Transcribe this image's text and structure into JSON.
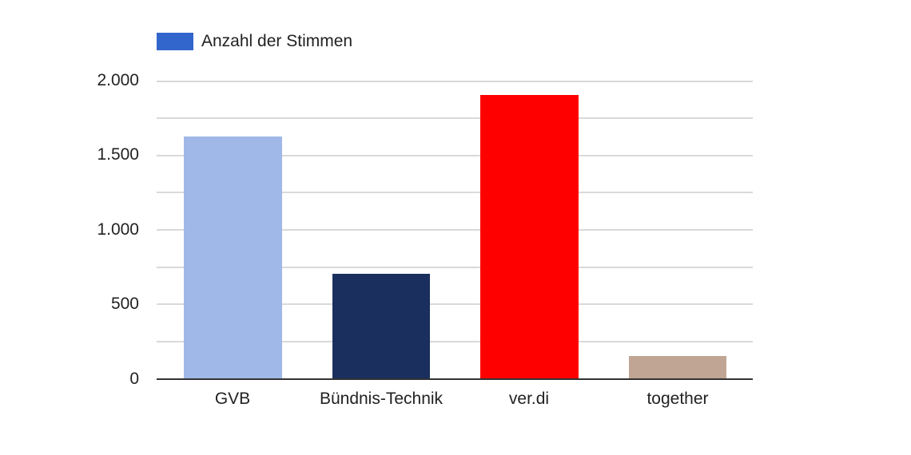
{
  "chart_data": {
    "type": "bar",
    "title": "",
    "xlabel": "",
    "ylabel": "",
    "legend": [
      "Anzahl der Stimmen"
    ],
    "legend_position": "top-left",
    "legend_color": "#3366cc",
    "categories": [
      "GVB",
      "Bündnis-Technik",
      "ver.di",
      "together"
    ],
    "values": [
      1620,
      700,
      1900,
      150
    ],
    "bar_colors": [
      "#a0b8e8",
      "#1a2f5e",
      "#ff0000",
      "#c0a594"
    ],
    "ylim": [
      0,
      2000
    ],
    "yticks": [
      0,
      500,
      1000,
      1500,
      2000
    ],
    "ytick_labels": [
      "0",
      "500",
      "1.000",
      "1.500",
      "2.000"
    ],
    "grid": true
  },
  "legend": {
    "label": "Anzahl der Stimmen"
  },
  "yaxis": {
    "ticks": [
      "2.000",
      "1.500",
      "1.000",
      "500",
      "0"
    ]
  },
  "xaxis": {
    "labels": [
      "GVB",
      "Bündnis-Technik",
      "ver.di",
      "together"
    ]
  }
}
